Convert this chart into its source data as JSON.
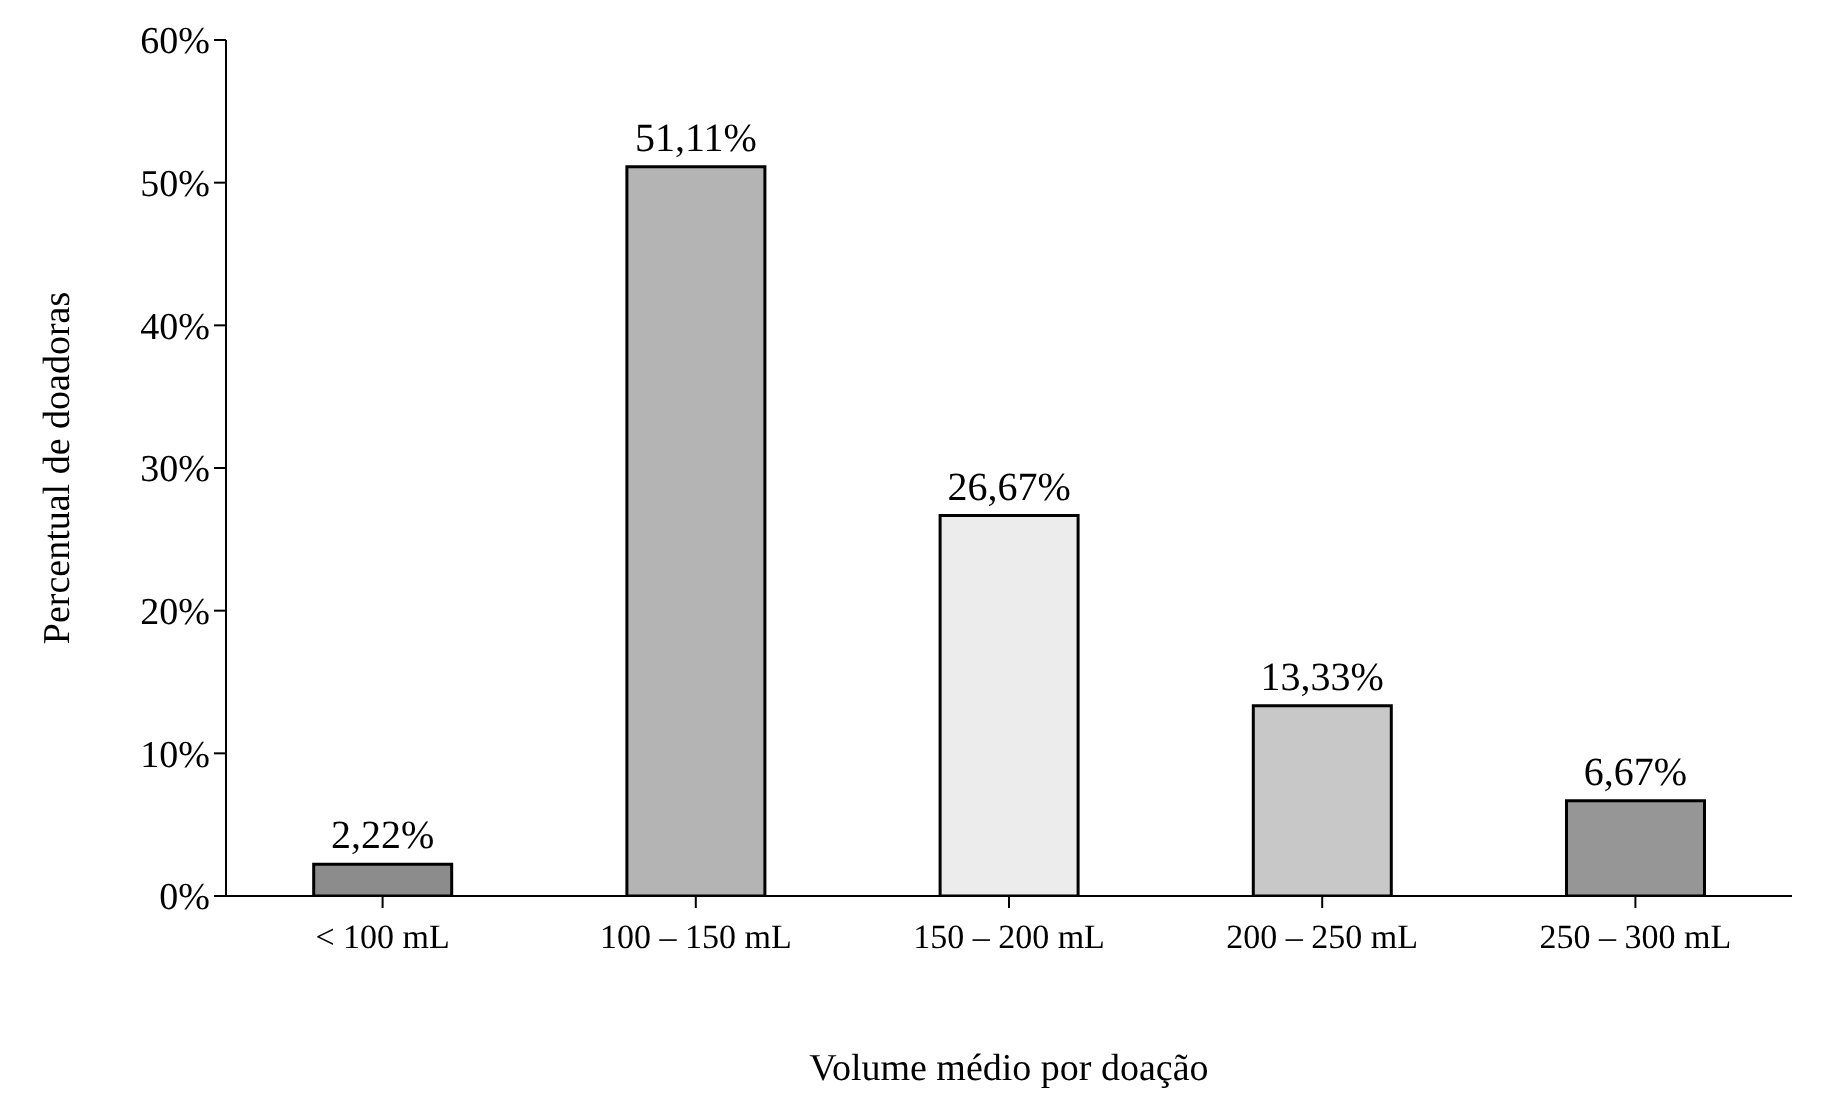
{
  "chart_data": {
    "type": "bar",
    "xlabel": "Volume médio por doação",
    "ylabel": "Percentual de doadoras",
    "categories": [
      "< 100 mL",
      "100 – 150 mL",
      "150 – 200 mL",
      "200 – 250 mL",
      "250 – 300 mL"
    ],
    "values": [
      2.22,
      51.11,
      26.67,
      13.33,
      6.67
    ],
    "colors": [
      "#8c8c8c",
      "#b4b4b4",
      "#ececec",
      "#c8c8c8",
      "#969696"
    ],
    "value_labels": [
      "2,22%",
      "51,11%",
      "26,67%",
      "13,33%",
      "6,67%"
    ],
    "ylim": [
      0,
      60
    ],
    "yticks": [
      {
        "value": 0,
        "label": "0%"
      },
      {
        "value": 10,
        "label": "10%"
      },
      {
        "value": 20,
        "label": "20%"
      },
      {
        "value": 30,
        "label": "30%"
      },
      {
        "value": 40,
        "label": "40%"
      },
      {
        "value": 50,
        "label": "50%"
      },
      {
        "value": 60,
        "label": "60%"
      }
    ],
    "grid": false
  }
}
